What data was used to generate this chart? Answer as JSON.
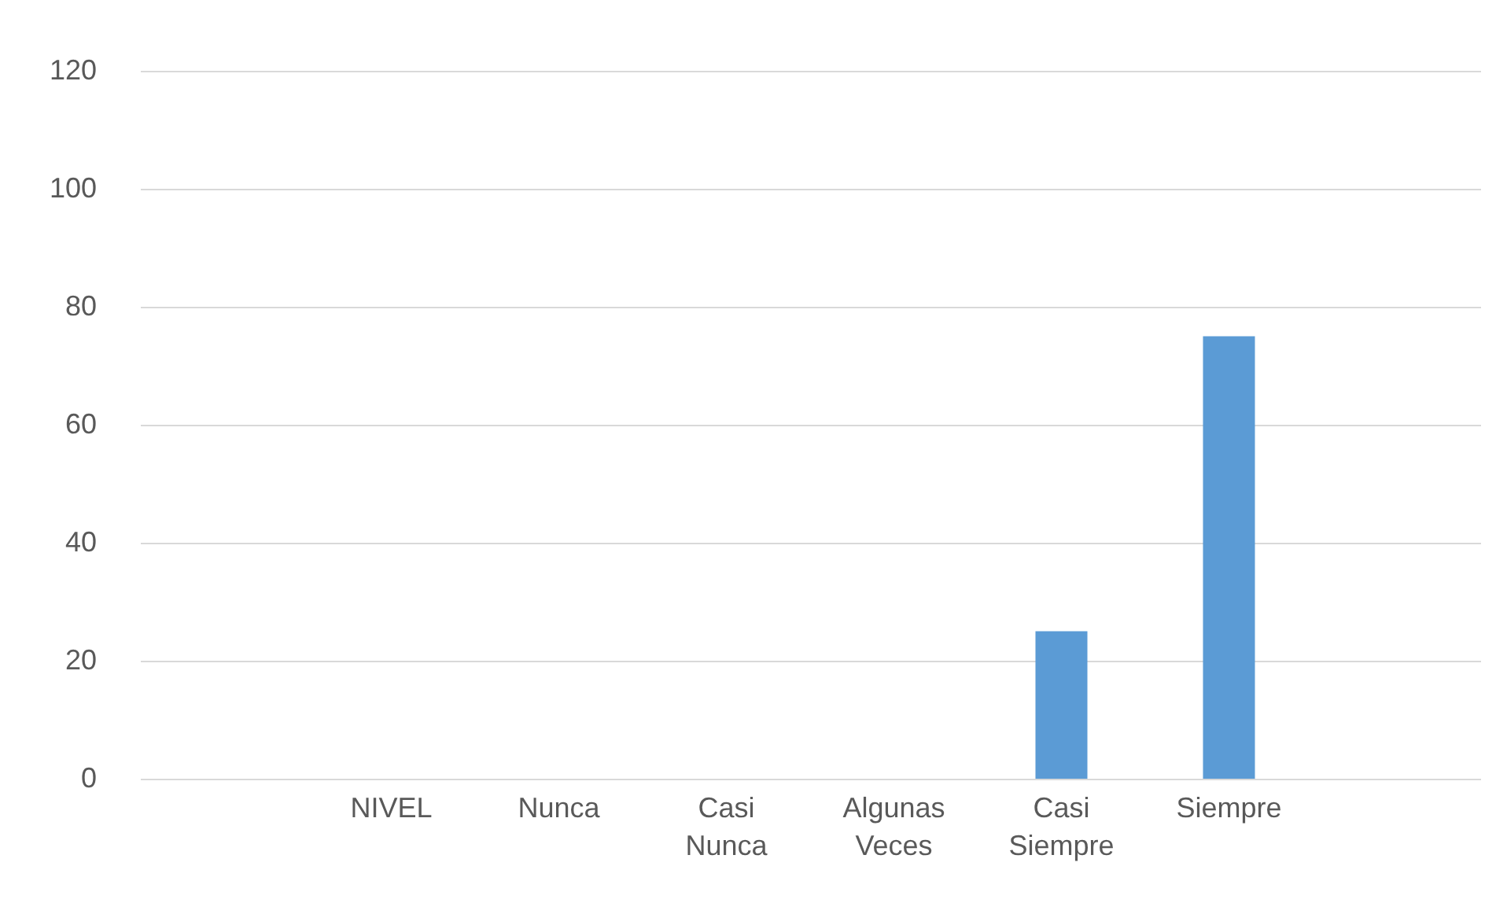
{
  "chart_data": {
    "type": "bar",
    "categories": [
      null,
      "NIVEL",
      "Nunca",
      "Casi Nunca",
      "Algunas Veces",
      "Casi Siempre",
      "Siempre",
      null
    ],
    "values": [
      null,
      null,
      0,
      0,
      0,
      25,
      75,
      null
    ],
    "color": "#5b9bd5",
    "ylim": [
      0,
      120
    ],
    "yticks": [
      0,
      20,
      40,
      60,
      80,
      100,
      120
    ],
    "grid": "y",
    "legend": false
  }
}
